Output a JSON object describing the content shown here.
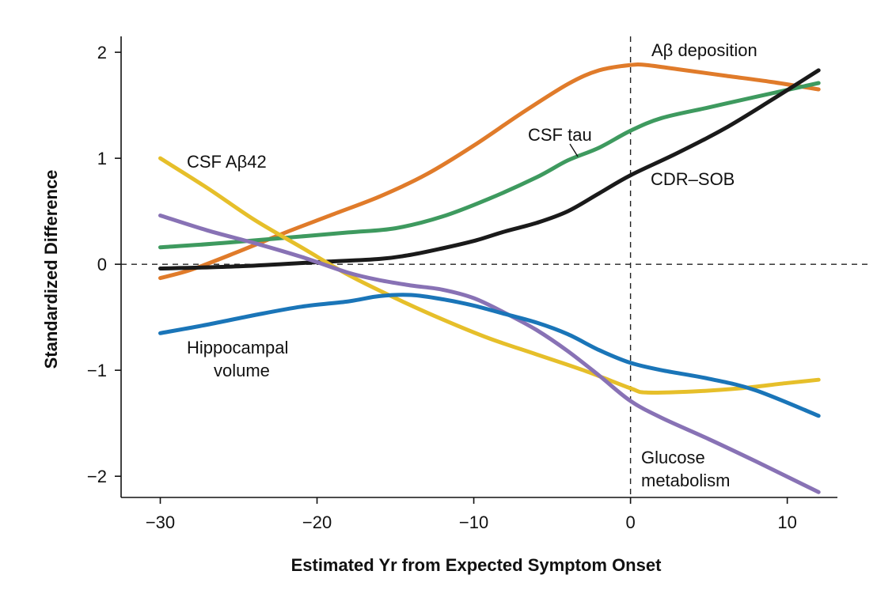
{
  "chart_data": {
    "type": "line",
    "title": "",
    "xlabel": "Estimated Yr from Expected Symptom Onset",
    "ylabel": "Standardized Difference",
    "xlim": [
      -32.5,
      13.2
    ],
    "ylim": [
      -2.2,
      2.15
    ],
    "xticks": [
      -30,
      -20,
      -10,
      0,
      10
    ],
    "yticks": [
      2,
      1,
      0,
      -1,
      -2
    ],
    "xtick_labels": [
      "−30",
      "−20",
      "−10",
      "0",
      "10"
    ],
    "ytick_labels": [
      "2",
      "1",
      "0",
      "−1",
      "−2"
    ],
    "reference_lines": [
      {
        "axis": "y",
        "value": 0,
        "style": "dashed"
      },
      {
        "axis": "x",
        "value": 0,
        "style": "dashed"
      }
    ],
    "grid": false,
    "legend": "none (series labeled inline)",
    "series": [
      {
        "name": "Aβ deposition",
        "label_lines": [
          "Aβ deposition"
        ],
        "color": "#E07B2A",
        "x": [
          -30,
          -28,
          -25,
          -22,
          -19,
          -16,
          -13,
          -10,
          -7,
          -4,
          -2,
          0,
          1,
          3,
          6,
          9,
          12
        ],
        "y": [
          -0.13,
          -0.05,
          0.12,
          0.3,
          0.47,
          0.64,
          0.85,
          1.12,
          1.42,
          1.7,
          1.83,
          1.88,
          1.88,
          1.84,
          1.78,
          1.72,
          1.65
        ]
      },
      {
        "name": "CSF tau",
        "label_lines": [
          "CSF tau"
        ],
        "color": "#3E9A5F",
        "x": [
          -30,
          -26,
          -22,
          -18,
          -15,
          -12,
          -9,
          -6,
          -4,
          -2,
          0,
          2,
          5,
          8,
          12
        ],
        "y": [
          0.16,
          0.2,
          0.25,
          0.3,
          0.34,
          0.45,
          0.62,
          0.82,
          0.98,
          1.1,
          1.26,
          1.38,
          1.48,
          1.58,
          1.71
        ]
      },
      {
        "name": "CDR–SOB",
        "label_lines": [
          "CDR–SOB"
        ],
        "color": "#1A1A1A",
        "x": [
          -30,
          -25,
          -20,
          -16,
          -14,
          -12,
          -10,
          -8,
          -6,
          -4,
          -2,
          0,
          3,
          6,
          9,
          12
        ],
        "y": [
          -0.04,
          -0.02,
          0.02,
          0.05,
          0.09,
          0.15,
          0.22,
          0.31,
          0.39,
          0.5,
          0.67,
          0.84,
          1.05,
          1.28,
          1.55,
          1.83
        ]
      },
      {
        "name": "CSF Aβ42",
        "label_lines": [
          "CSF Aβ42"
        ],
        "color": "#E6BF2A",
        "x": [
          -30,
          -27,
          -24,
          -21,
          -18,
          -15,
          -12,
          -9,
          -6,
          -3,
          0,
          1,
          4,
          7,
          10,
          12
        ],
        "y": [
          1.0,
          0.72,
          0.42,
          0.16,
          -0.1,
          -0.32,
          -0.52,
          -0.7,
          -0.85,
          -1.0,
          -1.17,
          -1.21,
          -1.2,
          -1.17,
          -1.12,
          -1.09
        ]
      },
      {
        "name": "Glucose metabolism",
        "label_lines": [
          "Glucose",
          "metabolism"
        ],
        "color": "#8872B5",
        "x": [
          -30,
          -27,
          -24,
          -21,
          -18,
          -16,
          -14,
          -12,
          -10,
          -8,
          -6,
          -4,
          -2,
          0,
          2,
          5,
          8,
          12
        ],
        "y": [
          0.46,
          0.32,
          0.2,
          0.07,
          -0.08,
          -0.15,
          -0.2,
          -0.24,
          -0.32,
          -0.46,
          -0.62,
          -0.82,
          -1.05,
          -1.29,
          -1.45,
          -1.65,
          -1.86,
          -2.15
        ]
      },
      {
        "name": "Hippocampal volume",
        "label_lines": [
          "Hippocampal",
          "volume"
        ],
        "color": "#1A75B8",
        "x": [
          -30,
          -27,
          -24,
          -21,
          -18,
          -16,
          -14,
          -12,
          -10,
          -8,
          -6,
          -4,
          -2,
          0,
          2,
          5,
          8,
          12
        ],
        "y": [
          -0.65,
          -0.57,
          -0.48,
          -0.4,
          -0.35,
          -0.3,
          -0.29,
          -0.33,
          -0.39,
          -0.47,
          -0.55,
          -0.66,
          -0.81,
          -0.93,
          -1.0,
          -1.08,
          -1.19,
          -1.43
        ]
      }
    ]
  }
}
